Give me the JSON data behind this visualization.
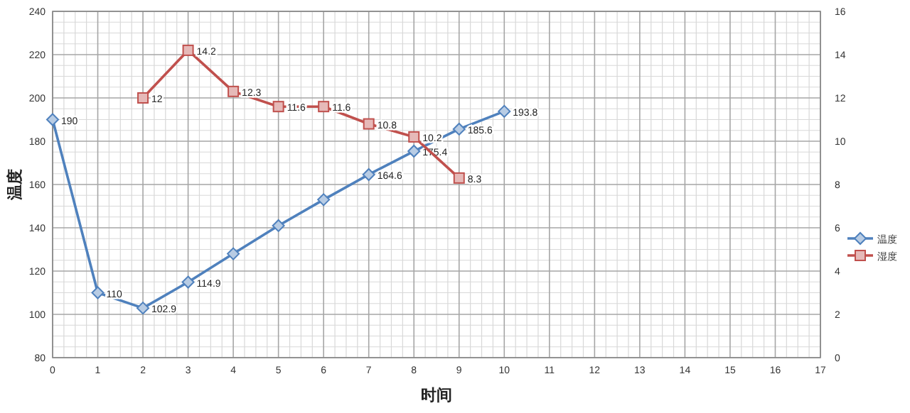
{
  "chart_data": {
    "type": "line",
    "xlabel": "时间",
    "ylabel": "温度",
    "xlim": [
      0,
      17
    ],
    "xticks": [
      0,
      1,
      2,
      3,
      4,
      5,
      6,
      7,
      8,
      9,
      10,
      11,
      12,
      13,
      14,
      15,
      16,
      17
    ],
    "ylim": [
      80,
      240
    ],
    "yticks": [
      80,
      100,
      120,
      140,
      160,
      180,
      200,
      220,
      240
    ],
    "y2lim": [
      0,
      16
    ],
    "y2ticks": [
      0,
      2,
      4,
      6,
      8,
      10,
      12,
      14,
      16
    ],
    "grid": true,
    "legend": "right",
    "line_style": "solid",
    "series": [
      {
        "name": "温度",
        "color": "#4f81bd",
        "marker": "diamond",
        "x": [
          0,
          1,
          2,
          3,
          4,
          5,
          6,
          7,
          8,
          9,
          10
        ],
        "values": [
          190,
          110,
          102.9,
          114.9,
          128,
          141,
          153,
          164.6,
          175.4,
          185.6,
          193.8
        ],
        "value_labels": [
          "190",
          "110",
          "102.9",
          "114.9",
          null,
          null,
          null,
          "164.6",
          "175.4",
          "185.6",
          "193.8"
        ]
      },
      {
        "name": "湿度",
        "color": "#c0504d",
        "marker": "square",
        "axis": "y2",
        "x": [
          2,
          3,
          4,
          5,
          6,
          7,
          8,
          9
        ],
        "values": [
          12,
          14.2,
          12.3,
          11.6,
          11.6,
          10.8,
          10.2,
          8.3
        ],
        "value_labels": [
          "12",
          "14.2",
          "12.3",
          "11.6",
          "11.6",
          "10.8",
          "10.2",
          "8.3"
        ]
      }
    ]
  }
}
